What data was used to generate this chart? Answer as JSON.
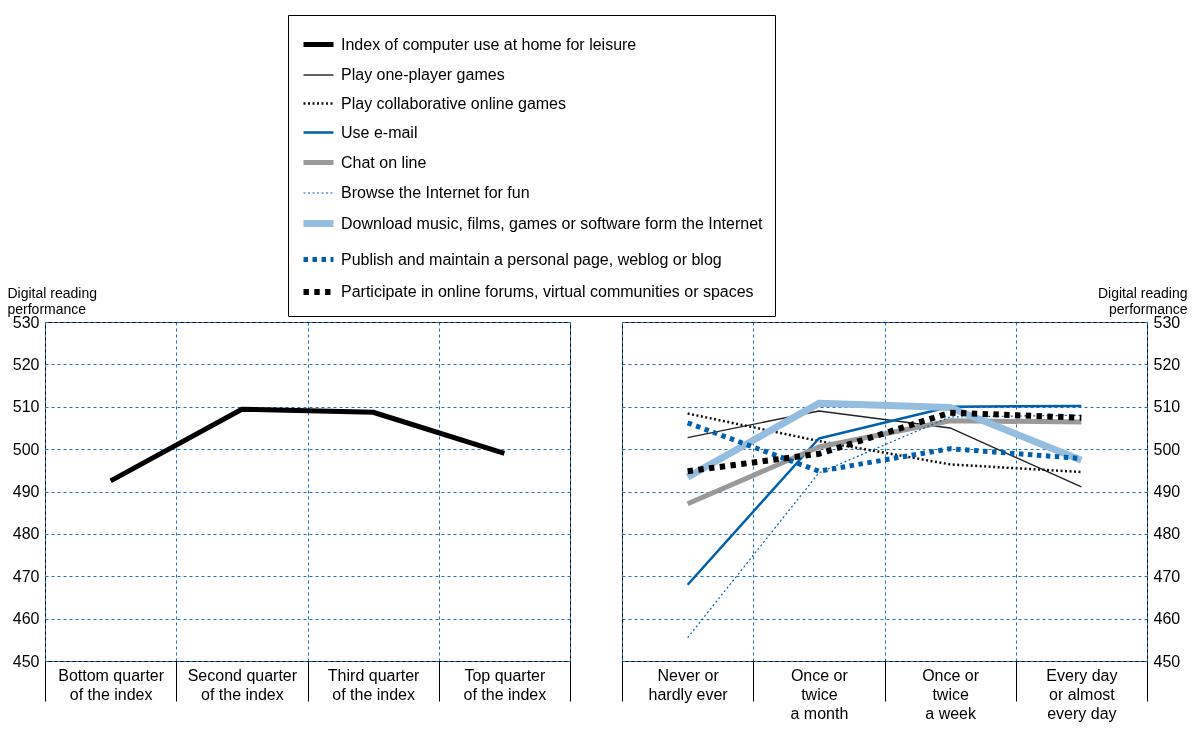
{
  "chart_data": [
    {
      "type": "line",
      "categories": [
        "Bottom quarter\nof the index",
        "Second quarter\nof the index",
        "Third quarter\nof the index",
        "Top quarter\nof the index"
      ],
      "ylabel": "Digital reading\nperformance",
      "ylim": [
        450,
        530
      ],
      "yticks": [
        450,
        460,
        470,
        480,
        490,
        500,
        510,
        520,
        530
      ],
      "grid": true,
      "legend": "top",
      "series": [
        {
          "name": "Index of computer use at home for leisure",
          "color": "#000000",
          "line_style": "solid",
          "values": [
            492.5,
            509.4,
            508.7,
            499.0
          ]
        }
      ]
    },
    {
      "type": "line",
      "categories": [
        "Never or\nhardly ever",
        "Once or\ntwice\na month",
        "Once or\ntwice\na week",
        "Every day\nor almost\nevery day"
      ],
      "ylabel": "Digital reading\nperformance",
      "ylim": [
        450,
        530
      ],
      "yticks": [
        450,
        460,
        470,
        480,
        490,
        500,
        510,
        520,
        530
      ],
      "grid": true,
      "legend": "top",
      "series": [
        {
          "name": "Play one-player games",
          "color": "#222222",
          "line_style": "solid",
          "values": [
            502.7,
            509.0,
            505.0,
            491.1
          ]
        },
        {
          "name": "Play collaborative online games",
          "color": "#111111",
          "line_style": "dotted",
          "values": [
            508.4,
            501.9,
            496.4,
            494.6
          ]
        },
        {
          "name": "Use e-mail",
          "color": "#0060ac",
          "line_style": "solid",
          "values": [
            468.0,
            502.5,
            510.0,
            510.2
          ]
        },
        {
          "name": "Chat on line",
          "color": "#999999",
          "line_style": "solid",
          "values": [
            487.1,
            500.5,
            506.7,
            506.4
          ]
        },
        {
          "name": "Browse the Internet for fun",
          "color": "#0060ac",
          "line_style": "dotted",
          "values": [
            455.5,
            494.4,
            507.6,
            508.0
          ]
        },
        {
          "name": "Download music, films, games or software form the Internet",
          "color": "#95bde0",
          "line_style": "solid",
          "values": [
            493.4,
            510.8,
            509.8,
            497.4
          ]
        },
        {
          "name": "Publish and maintain a personal page, weblog or blog",
          "color": "#0060ac",
          "line_style": "dotted",
          "values": [
            506.2,
            494.8,
            500.1,
            497.8
          ]
        },
        {
          "name": "Participate in online forums, virtual communities or spaces",
          "color": "#000000",
          "line_style": "dotted",
          "values": [
            494.8,
            498.9,
            508.6,
            507.4
          ]
        }
      ]
    }
  ]
}
